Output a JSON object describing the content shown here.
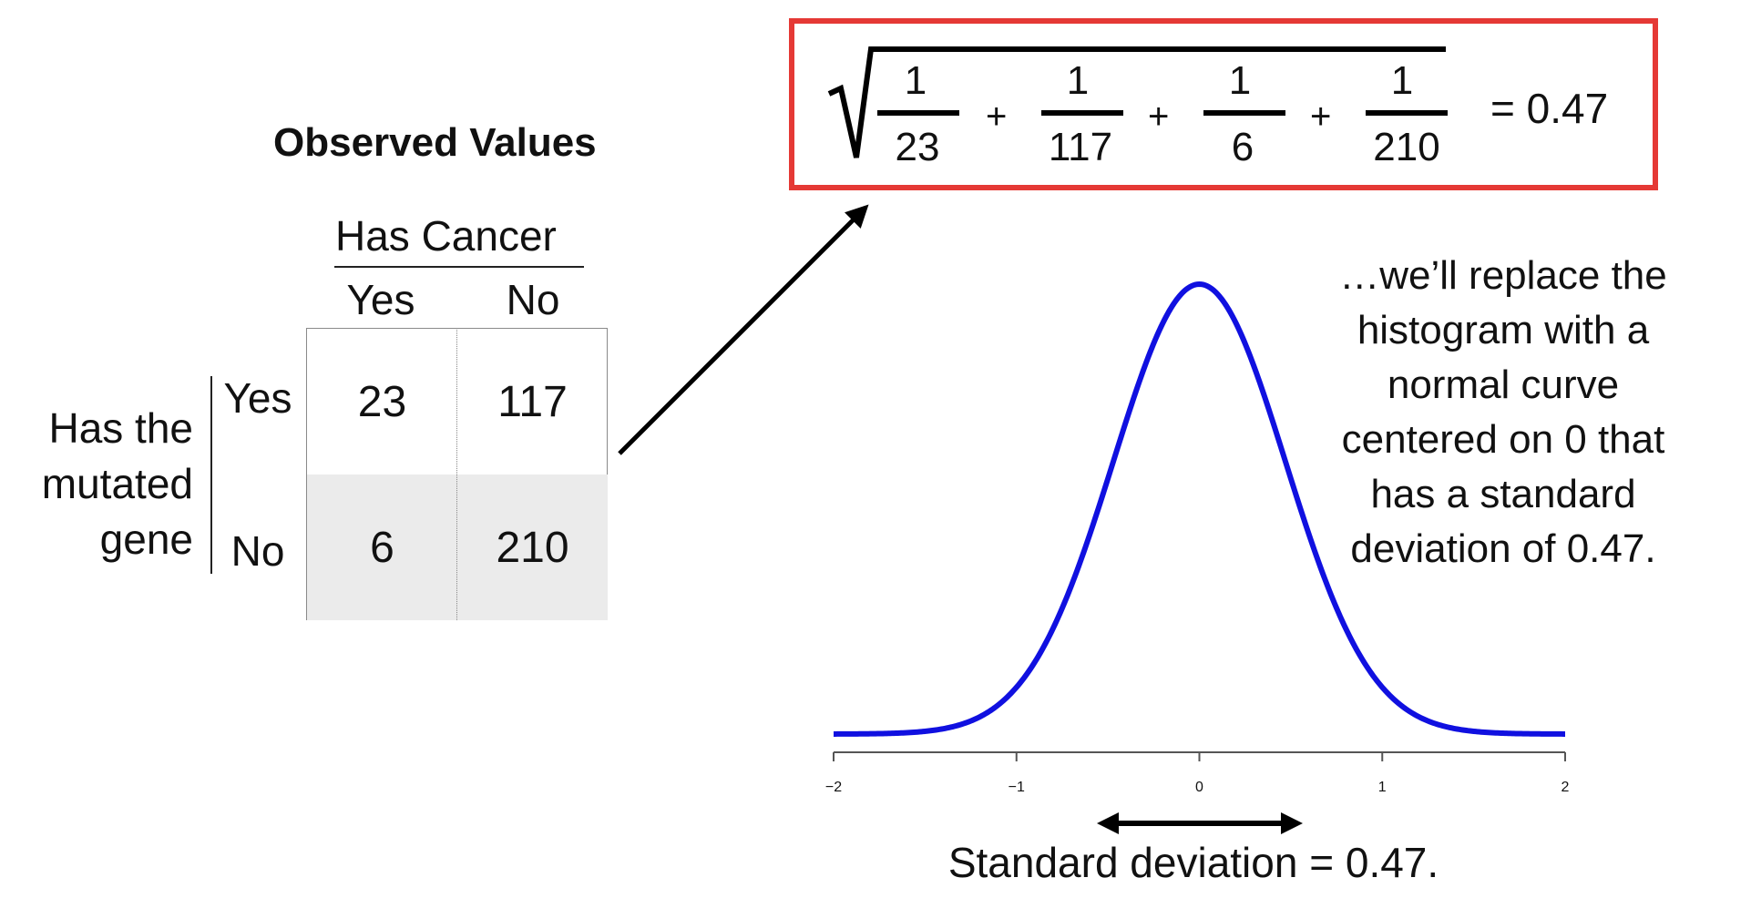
{
  "table": {
    "title": "Observed Values",
    "col_header": "Has Cancer",
    "col_labels": [
      "Yes",
      "No"
    ],
    "row_header_lines": [
      "Has the",
      "mutated",
      "gene"
    ],
    "row_labels": [
      "Yes",
      "No"
    ],
    "cells": [
      [
        "23",
        "117"
      ],
      [
        "6",
        "210"
      ]
    ]
  },
  "formula": {
    "numerators": [
      "1",
      "1",
      "1",
      "1"
    ],
    "denominators": [
      "23",
      "117",
      "6",
      "210"
    ],
    "operators": [
      "+",
      "+",
      "+"
    ],
    "result": "= 0.47"
  },
  "explanation_lines": [
    "…we’ll replace the",
    "histogram with a",
    "normal curve",
    "centered on 0 that",
    "has a standard",
    "deviation of 0.47."
  ],
  "colors": {
    "curve": "#1010e0",
    "formula_box": "#e53935",
    "shaded_cells": "#ebebeb"
  },
  "chart_data": {
    "type": "line",
    "series": [
      {
        "distribution": "normal",
        "mean": 0,
        "sd": 0.47
      }
    ],
    "xlim": [
      -2,
      2
    ],
    "xticks": [
      "−2",
      "−1",
      "0",
      "1",
      "2"
    ],
    "annotation": "Standard deviation = 0.47."
  }
}
